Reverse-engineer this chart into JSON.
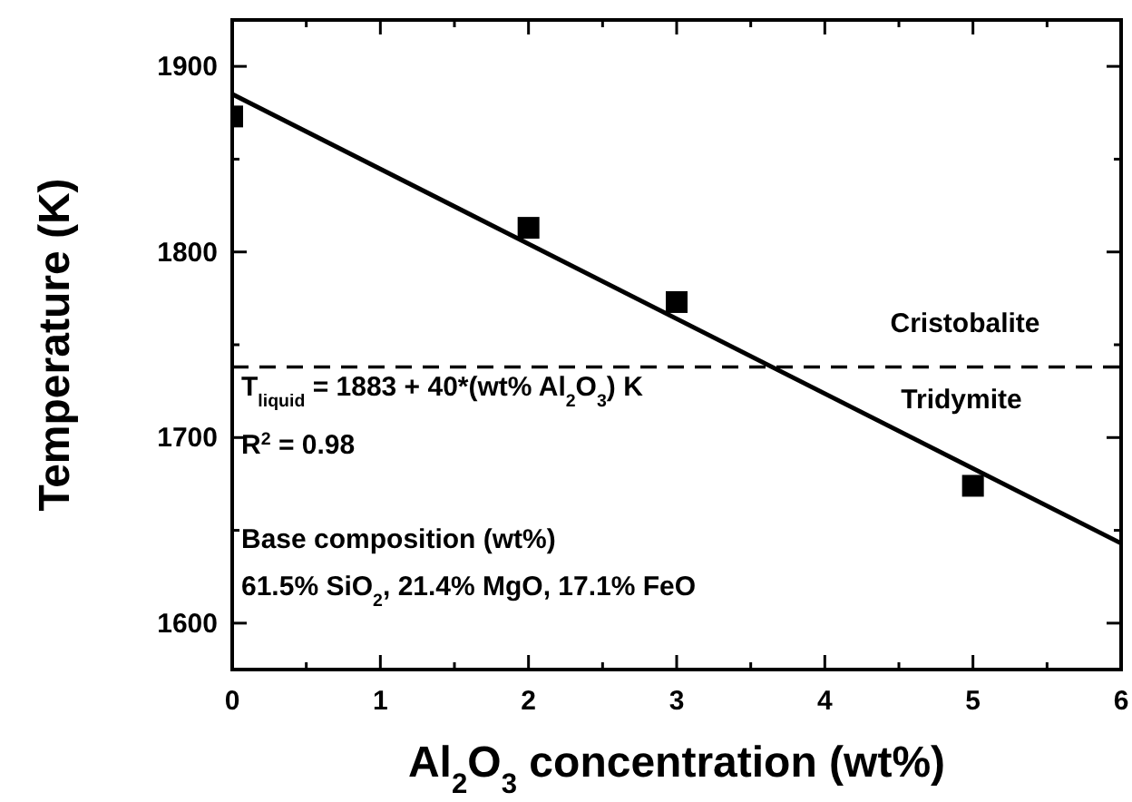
{
  "chart_data": {
    "type": "scatter",
    "xlabel": "Al$_{2}$O$_{3}$ concentration (wt%)",
    "ylabel": "Temperature (K)",
    "xlim": [
      0,
      6
    ],
    "ylim": [
      1575,
      1925
    ],
    "xticks": [
      0,
      {
        "value": 0.5,
        "label": null
      },
      1,
      {
        "value": 1.5,
        "label": null
      },
      2,
      {
        "value": 2.5,
        "label": null
      },
      3,
      {
        "value": 3.5,
        "label": null
      },
      4,
      {
        "value": 4.5,
        "label": null
      },
      5,
      {
        "value": 5.5,
        "label": null
      },
      6
    ],
    "yticks": [
      1600,
      {
        "value": 1650,
        "label": null
      },
      1700,
      {
        "value": 1750,
        "label": null
      },
      1800,
      {
        "value": 1850,
        "label": null
      },
      1900
    ],
    "grid": false,
    "series": [
      {
        "color": "#000000",
        "marker": "square",
        "x": [
          0,
          2,
          3,
          5
        ],
        "values": [
          1873,
          1813,
          1773,
          1674
        ]
      },
      {
        "type": "line",
        "color": "#000000",
        "marker": "none",
        "x": [
          0,
          6
        ],
        "values": [
          1885,
          1643
        ]
      }
    ],
    "ref_lines": [
      {
        "axis": "y",
        "value": 1738,
        "line_style": "dashed",
        "color": "#000000"
      }
    ],
    "annotations": [
      "T$_{liquid}$ = 1883 + 40*(wt% Al$_{2}$O$_{3}$) K",
      "R$^{2}$ = 0.98",
      "Base composition (wt%)",
      "61.5% SiO$_{2}$, 21.4% MgO, 17.1% FeO",
      "Cristobalite",
      "Tridymite"
    ]
  }
}
